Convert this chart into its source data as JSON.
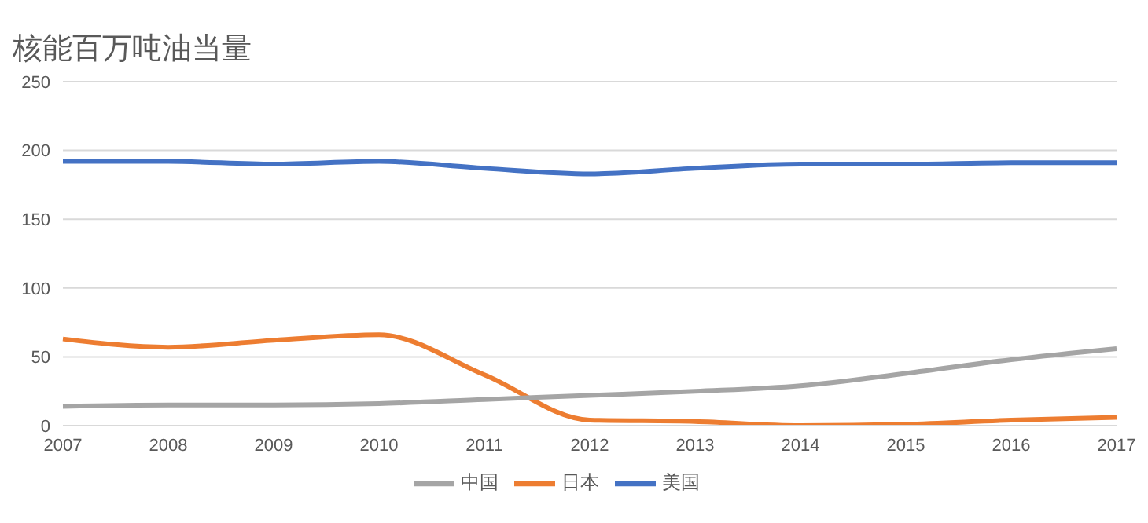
{
  "chart_data": {
    "type": "line",
    "title": "核能百万吨油当量",
    "categories": [
      "2007",
      "2008",
      "2009",
      "2010",
      "2011",
      "2012",
      "2013",
      "2014",
      "2015",
      "2016",
      "2017"
    ],
    "series": [
      {
        "name": "美国",
        "color": "#4472c4",
        "values": [
          192,
          192,
          190,
          192,
          187,
          183,
          187,
          190,
          190,
          191,
          191
        ]
      },
      {
        "name": "日本",
        "color": "#ed7d31",
        "values": [
          63,
          57,
          62,
          66,
          37,
          4,
          3,
          0,
          1,
          4,
          6
        ]
      },
      {
        "name": "中国",
        "color": "#a5a5a5",
        "values": [
          14,
          15,
          15,
          16,
          19,
          22,
          25,
          29,
          38,
          48,
          56
        ]
      }
    ],
    "ylim": [
      0,
      250
    ],
    "yticks": [
      0,
      50,
      100,
      150,
      200,
      250
    ],
    "grid": "y",
    "legend": "bottom",
    "marker": "none",
    "line_style": "solid"
  }
}
